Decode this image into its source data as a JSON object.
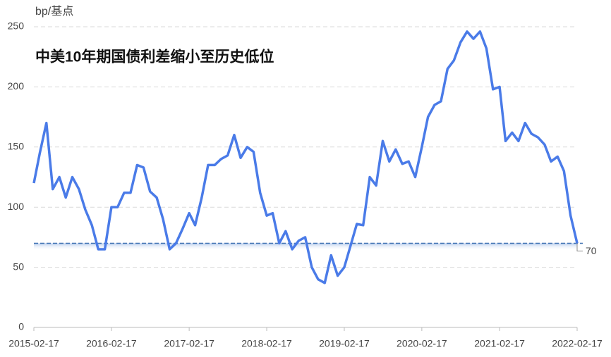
{
  "chart_data": {
    "type": "line",
    "title": "中美10年期国债利差缩小至历史低位",
    "y_unit": "bp/基点",
    "x": [
      "2015-02-17",
      "2015-03-17",
      "2015-04-17",
      "2015-05-17",
      "2015-06-17",
      "2015-07-17",
      "2015-08-17",
      "2015-09-17",
      "2015-10-17",
      "2015-11-17",
      "2015-12-17",
      "2016-01-17",
      "2016-02-17",
      "2016-03-17",
      "2016-04-17",
      "2016-05-17",
      "2016-06-17",
      "2016-07-17",
      "2016-08-17",
      "2016-09-17",
      "2016-10-17",
      "2016-11-17",
      "2016-12-17",
      "2017-01-17",
      "2017-02-17",
      "2017-03-17",
      "2017-04-17",
      "2017-05-17",
      "2017-06-17",
      "2017-07-17",
      "2017-08-17",
      "2017-09-17",
      "2017-10-17",
      "2017-11-17",
      "2017-12-17",
      "2018-01-17",
      "2018-02-17",
      "2018-03-17",
      "2018-04-17",
      "2018-05-17",
      "2018-06-17",
      "2018-07-17",
      "2018-08-17",
      "2018-09-17",
      "2018-10-17",
      "2018-11-17",
      "2018-12-17",
      "2019-01-17",
      "2019-02-17",
      "2019-03-17",
      "2019-04-17",
      "2019-05-17",
      "2019-06-17",
      "2019-07-17",
      "2019-08-17",
      "2019-09-17",
      "2019-10-17",
      "2019-11-17",
      "2019-12-17",
      "2020-01-17",
      "2020-02-17",
      "2020-03-17",
      "2020-04-17",
      "2020-05-17",
      "2020-06-17",
      "2020-07-17",
      "2020-08-17",
      "2020-09-17",
      "2020-10-17",
      "2020-11-17",
      "2020-12-17",
      "2021-01-17",
      "2021-02-17",
      "2021-03-17",
      "2021-04-17",
      "2021-05-17",
      "2021-06-17",
      "2021-07-17",
      "2021-08-17",
      "2021-09-17",
      "2021-10-17",
      "2021-11-17",
      "2021-12-17",
      "2022-01-17",
      "2022-02-17"
    ],
    "series": [
      {
        "name": "中美10年期国债利差",
        "color": "#4a7be8",
        "values": [
          120,
          145,
          170,
          115,
          125,
          108,
          125,
          115,
          98,
          85,
          65,
          65,
          100,
          100,
          112,
          112,
          135,
          133,
          113,
          108,
          90,
          65,
          70,
          82,
          95,
          85,
          108,
          135,
          135,
          140,
          143,
          160,
          141,
          150,
          146,
          112,
          93,
          95,
          70,
          80,
          65,
          72,
          75,
          50,
          40,
          37,
          60,
          43,
          50,
          67,
          86,
          85,
          125,
          118,
          155,
          138,
          148,
          136,
          138,
          125,
          150,
          175,
          185,
          188,
          215,
          222,
          237,
          246,
          240,
          246,
          232,
          198,
          200,
          155,
          162,
          155,
          170,
          161,
          158,
          152,
          138,
          142,
          130,
          93,
          70
        ]
      }
    ],
    "xlim": [
      "2015-02-17",
      "2022-02-17"
    ],
    "xticks": [
      "2015-02-17",
      "2016-02-17",
      "2017-02-17",
      "2018-02-17",
      "2019-02-17",
      "2020-02-17",
      "2021-02-17",
      "2022-02-17"
    ],
    "ylim": [
      0,
      250
    ],
    "yticks": [
      0,
      50,
      100,
      150,
      200,
      250
    ],
    "reference_line": 70,
    "grid": true
  }
}
